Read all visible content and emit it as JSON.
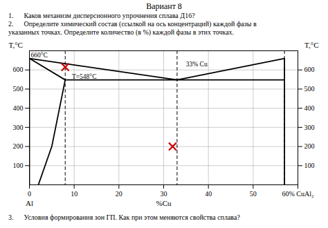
{
  "chart_data": {
    "type": "line",
    "title": "Вариант 8",
    "subtitle": [
      "1.      Каков механизм дисперсионного упрочнения сплава Д16?",
      "2.      Определите химический состав (ссылкой на ось концентраций) каждой фазы в",
      "указанных точках. Определите количество (в %) каждой фазы в этих точках."
    ],
    "caption": "3.      Условия формирования зон ГП. Как при этом меняются свойства сплава?",
    "xlabel": "%Cu",
    "ylabel": "T,°C",
    "y2label": "T,°C",
    "xlim": [
      0,
      60
    ],
    "ylim": [
      0,
      700
    ],
    "y2lim": [
      0,
      700
    ],
    "xticks": [
      0,
      10,
      20,
      30,
      40,
      50,
      {
        "value": 60,
        "label": "60% CuAl₂"
      }
    ],
    "yticks": [
      100,
      200,
      300,
      400,
      500,
      600
    ],
    "y2ticks": [
      100,
      200,
      300,
      400,
      500,
      600
    ],
    "grid": true,
    "series": [
      {
        "type": "line",
        "color": "#000000",
        "x": [
          0,
          33
        ],
        "y": [
          660,
          548
        ]
      },
      {
        "type": "line",
        "color": "#000000",
        "x": [
          33,
          57
        ],
        "y": [
          548,
          660
        ]
      },
      {
        "type": "line",
        "color": "#000000",
        "x": [
          0,
          8
        ],
        "y": [
          660,
          548
        ]
      },
      {
        "type": "line",
        "color": "#000000",
        "x": [
          8,
          5,
          2
        ],
        "y": [
          548,
          200,
          0
        ]
      },
      {
        "type": "line",
        "color": "#000000",
        "x": [
          8,
          57
        ],
        "y": [
          548,
          548
        ]
      },
      {
        "type": "line",
        "color": "#000000",
        "x": [
          57,
          57
        ],
        "y": [
          0,
          660
        ]
      },
      {
        "type": "line",
        "color": "#000000",
        "x": [
          0,
          0
        ],
        "y": [
          0,
          660
        ]
      },
      {
        "type": "rule",
        "color": "#000000",
        "line_style": "dashed",
        "x": [
          8,
          33,
          57
        ]
      },
      {
        "type": "scatter",
        "color": "#cc0000",
        "marker": "x",
        "x": [
          8,
          32
        ],
        "y": [
          615,
          200
        ]
      }
    ],
    "annotations": [
      {
        "text": "660°C",
        "x": 0.3,
        "y": 665
      },
      {
        "text": "T=548°C",
        "x": 9.5,
        "y": 553
      },
      {
        "text": "33% Cu",
        "x": 35,
        "y": 618
      },
      {
        "text": "Al",
        "x": 0
      }
    ]
  }
}
